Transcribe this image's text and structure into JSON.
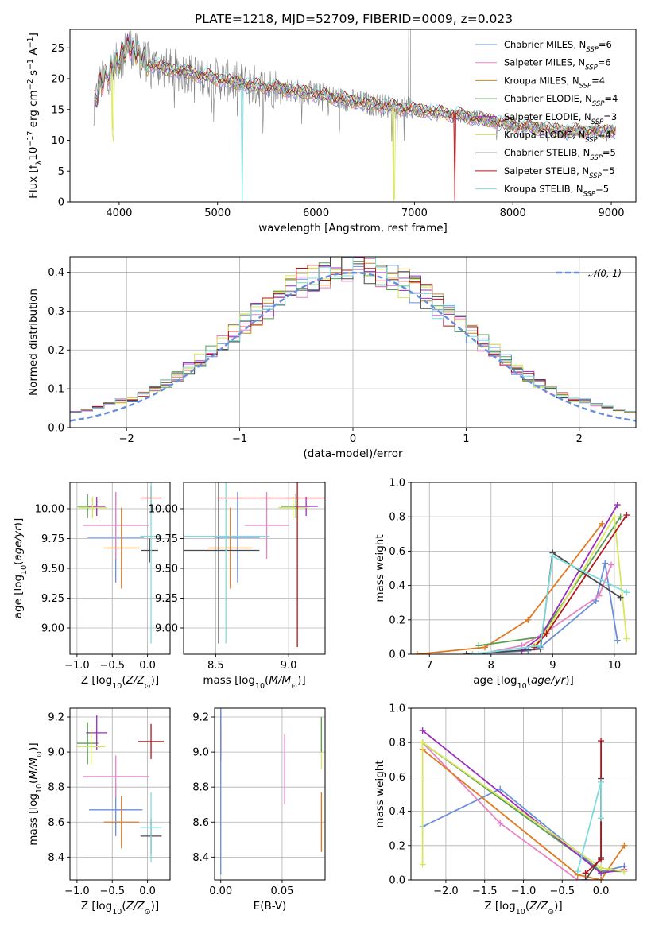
{
  "title": "PLATE=1218, MJD=52709, FIBERID=0009, z=0.023",
  "colors": {
    "chab_miles": "#6a8fd8",
    "salp_miles": "#e883c5",
    "kroupa_miles": "#c8882a",
    "chab_elodie": "#5a9e52",
    "salp_elodie": "#9b2dbd",
    "kroupa_elodie": "#d8e65a",
    "chab_stelib": "#4a4a4a",
    "salp_stelib": "#b3141b",
    "kroupa_stelib": "#7fdcdc",
    "data": "#808080",
    "age_mid": "#e07a22",
    "gauss": "#6a8fd8"
  },
  "chart_data": [
    {
      "id": "spectrum",
      "type": "line",
      "title": "PLATE=1218, MJD=52709, FIBERID=0009, z=0.023",
      "xlabel": "wavelength [Angstrom, rest frame]",
      "ylabel": "Flux [f_λ10^-17 erg cm^-2 s^-1 A^-1]",
      "xlim": [
        3500,
        9250
      ],
      "ylim": [
        0,
        28
      ],
      "xticks": [
        4000,
        5000,
        6000,
        7000,
        8000,
        9000
      ],
      "yticks": [
        0,
        5,
        10,
        15,
        20,
        25
      ],
      "grid": false,
      "legend_position": "top-right",
      "legend": [
        {
          "label": "Chabrier MILES, N",
          "sub": "SSP",
          "eq": "=6",
          "color_key": "chab_miles"
        },
        {
          "label": "Salpeter MILES, N",
          "sub": "SSP",
          "eq": "=6",
          "color_key": "salp_miles"
        },
        {
          "label": "Kroupa MILES, N",
          "sub": "SSP",
          "eq": "=4",
          "color_key": "kroupa_miles"
        },
        {
          "label": "Chabrier ELODIE, N",
          "sub": "SSP",
          "eq": "=4",
          "color_key": "chab_elodie"
        },
        {
          "label": "Salpeter ELODIE, N",
          "sub": "SSP",
          "eq": "=3",
          "color_key": "salp_elodie"
        },
        {
          "label": "Kroupa ELODIE, N",
          "sub": "SSP",
          "eq": "=4",
          "color_key": "kroupa_elodie"
        },
        {
          "label": "Chabrier STELIB, N",
          "sub": "SSP",
          "eq": "=5",
          "color_key": "chab_stelib"
        },
        {
          "label": "Salpeter STELIB, N",
          "sub": "SSP",
          "eq": "=5",
          "color_key": "salp_stelib"
        },
        {
          "label": "Kroupa STELIB, N",
          "sub": "SSP",
          "eq": "=5",
          "color_key": "kroupa_stelib"
        }
      ],
      "continuum": {
        "x": [
          3750,
          3800,
          3900,
          4000,
          4100,
          4200,
          4300,
          4400,
          4500,
          4700,
          5000,
          5300,
          5600,
          6000,
          6500,
          7000,
          7500,
          8000,
          8500,
          9000
        ],
        "y": [
          16,
          19,
          21,
          23,
          25.5,
          23.5,
          22.5,
          22,
          21.5,
          21,
          20,
          19,
          18.5,
          17.5,
          16,
          15,
          14,
          12.5,
          11.5,
          11.5
        ]
      },
      "absorption_features": [
        {
          "x": 3934,
          "depth": 10,
          "color_key": "kroupa_elodie"
        },
        {
          "x": 5250,
          "depth": 21,
          "color_key": "kroupa_stelib"
        },
        {
          "x": 6790,
          "depth": 15,
          "color_key": "kroupa_elodie"
        },
        {
          "x": 7410,
          "depth": 14,
          "color_key": "salp_stelib"
        }
      ],
      "data_spike": {
        "x": 6950,
        "y": 28
      }
    },
    {
      "id": "residuals",
      "type": "bar",
      "xlabel": "(data-model)/error",
      "ylabel": "Normed distribution",
      "xlim": [
        -2.5,
        2.5
      ],
      "ylim": [
        0,
        0.44
      ],
      "xticks": [
        -2,
        -1,
        0,
        1,
        2
      ],
      "yticks": [
        0.0,
        0.1,
        0.2,
        0.3,
        0.4
      ],
      "grid": true,
      "bin_width": 0.1,
      "legend_position": "top-right",
      "legend": [
        {
          "label": "N(0,1)",
          "color_key": "gauss",
          "style": "dashed"
        }
      ],
      "n_series": 9
    },
    {
      "id": "age-vs-Z",
      "type": "scatter",
      "xlabel": "Z [log10(Z/Z_sun)]",
      "ylabel": "age [log10(age/yr)]",
      "xlim": [
        -1.1,
        0.32
      ],
      "ylim": [
        8.78,
        10.22
      ],
      "xticks": [
        -1.0,
        -0.5,
        0.0
      ],
      "yticks": [
        9.0,
        9.25,
        9.5,
        9.75,
        10.0
      ],
      "grid": true,
      "points": [
        {
          "x": -0.45,
          "y": 9.76,
          "xerr": 0.4,
          "yerr": 0.38,
          "color_key": "chab_miles"
        },
        {
          "x": -0.45,
          "y": 9.86,
          "xerr": 0.47,
          "yerr": 0.28,
          "color_key": "salp_miles"
        },
        {
          "x": -0.37,
          "y": 9.67,
          "xerr": 0.25,
          "yerr": 0.34,
          "color_key": "age_mid"
        },
        {
          "x": -0.85,
          "y": 10.02,
          "xerr": 0.15,
          "yerr": 0.1,
          "color_key": "chab_elodie"
        },
        {
          "x": -0.72,
          "y": 10.02,
          "xerr": 0.12,
          "yerr": 0.08,
          "color_key": "salp_elodie"
        },
        {
          "x": -0.78,
          "y": 10.01,
          "xerr": 0.2,
          "yerr": 0.09,
          "color_key": "kroupa_elodie"
        },
        {
          "x": 0.03,
          "y": 9.65,
          "xerr": 0.12,
          "yerr": 0.1,
          "color_key": "chab_stelib"
        },
        {
          "x": 0.05,
          "y": 10.09,
          "xerr": 0.15,
          "yerr": 0.1,
          "color_key": "salp_stelib"
        },
        {
          "x": 0.05,
          "y": 9.77,
          "xerr": 0.15,
          "yerr": 0.9,
          "color_key": "kroupa_stelib"
        }
      ]
    },
    {
      "id": "age-vs-mass",
      "type": "scatter",
      "xlabel": "mass [log10(M/M_sun)]",
      "ylabel": "",
      "xlim": [
        8.28,
        9.25
      ],
      "ylim": [
        8.78,
        10.22
      ],
      "xticks": [
        8.5,
        9.0
      ],
      "yticks": [
        9.0,
        9.25,
        9.5,
        9.75,
        10.0
      ],
      "grid": true,
      "points": [
        {
          "x": 8.65,
          "y": 9.76,
          "xerr": 0.15,
          "yerr": 0.38,
          "color_key": "chab_miles"
        },
        {
          "x": 8.85,
          "y": 9.86,
          "xerr": 0.15,
          "yerr": 0.28,
          "color_key": "salp_miles"
        },
        {
          "x": 8.6,
          "y": 9.67,
          "xerr": 0.15,
          "yerr": 0.34,
          "color_key": "age_mid"
        },
        {
          "x": 9.05,
          "y": 10.02,
          "xerr": 0.1,
          "yerr": 0.1,
          "color_key": "chab_elodie"
        },
        {
          "x": 9.12,
          "y": 10.02,
          "xerr": 0.08,
          "yerr": 0.08,
          "color_key": "salp_elodie"
        },
        {
          "x": 9.03,
          "y": 10.01,
          "xerr": 0.1,
          "yerr": 0.09,
          "color_key": "kroupa_elodie"
        },
        {
          "x": 8.52,
          "y": 9.65,
          "xerr": 0.28,
          "yerr": 0.78,
          "color_key": "chab_stelib"
        },
        {
          "x": 9.06,
          "y": 10.09,
          "xerr": 0.55,
          "yerr": 1.25,
          "color_key": "salp_stelib"
        },
        {
          "x": 8.57,
          "y": 9.77,
          "xerr": 0.3,
          "yerr": 0.9,
          "color_key": "kroupa_stelib"
        }
      ]
    },
    {
      "id": "mass-weight-vs-age",
      "type": "line",
      "xlabel": "age [log10(age/yr)]",
      "ylabel": "mass weight",
      "xlim": [
        6.7,
        10.35
      ],
      "ylim": [
        0,
        1.0
      ],
      "xticks": [
        7,
        8,
        9,
        10
      ],
      "yticks": [
        0.0,
        0.2,
        0.4,
        0.6,
        0.8,
        1.0
      ],
      "grid": true,
      "series": [
        {
          "color_key": "chab_miles",
          "x": [
            7.6,
            8.6,
            8.8,
            9.7,
            9.85,
            10.05
          ],
          "y": [
            0.0,
            0.02,
            0.04,
            0.31,
            0.53,
            0.08
          ]
        },
        {
          "color_key": "salp_miles",
          "x": [
            7.8,
            8.5,
            8.9,
            9.75,
            9.95
          ],
          "y": [
            0.0,
            0.05,
            0.13,
            0.34,
            0.52
          ]
        },
        {
          "color_key": "age_mid",
          "x": [
            6.8,
            7.9,
            8.6,
            9.8
          ],
          "y": [
            0.0,
            0.04,
            0.2,
            0.76
          ]
        },
        {
          "color_key": "chab_elodie",
          "x": [
            7.8,
            8.8,
            10.1
          ],
          "y": [
            0.05,
            0.1,
            0.8
          ]
        },
        {
          "color_key": "salp_elodie",
          "x": [
            8.5,
            8.8,
            10.05
          ],
          "y": [
            0.02,
            0.1,
            0.87
          ]
        },
        {
          "color_key": "kroupa_elodie",
          "x": [
            8.7,
            8.9,
            10.0,
            10.2
          ],
          "y": [
            0.05,
            0.13,
            0.8,
            0.09
          ]
        },
        {
          "color_key": "chab_stelib",
          "x": [
            7.6,
            8.8,
            9.0,
            10.1
          ],
          "y": [
            0.0,
            0.03,
            0.59,
            0.33
          ]
        },
        {
          "color_key": "salp_stelib",
          "x": [
            8.7,
            8.9,
            10.2
          ],
          "y": [
            0.04,
            0.12,
            0.81
          ]
        },
        {
          "color_key": "kroupa_stelib",
          "x": [
            7.7,
            8.8,
            9.0,
            10.2
          ],
          "y": [
            0.0,
            0.05,
            0.57,
            0.36
          ]
        }
      ]
    },
    {
      "id": "mass-vs-Z",
      "type": "scatter",
      "xlabel": "Z [log10(Z/Z_sun)]",
      "ylabel": "mass [log10(M/M_sun)]",
      "xlim": [
        -1.1,
        0.32
      ],
      "ylim": [
        8.27,
        9.25
      ],
      "xticks": [
        -1.0,
        -0.5,
        0.0
      ],
      "yticks": [
        8.4,
        8.6,
        8.8,
        9.0,
        9.2
      ],
      "grid": true,
      "points": [
        {
          "x": -0.45,
          "y": 8.67,
          "xerr": 0.38,
          "yerr": 0.15,
          "color_key": "chab_miles"
        },
        {
          "x": -0.45,
          "y": 8.86,
          "xerr": 0.47,
          "yerr": 0.12,
          "color_key": "salp_miles"
        },
        {
          "x": -0.37,
          "y": 8.6,
          "xerr": 0.25,
          "yerr": 0.15,
          "color_key": "age_mid"
        },
        {
          "x": -0.85,
          "y": 9.05,
          "xerr": 0.15,
          "yerr": 0.12,
          "color_key": "chab_elodie"
        },
        {
          "x": -0.72,
          "y": 9.11,
          "xerr": 0.15,
          "yerr": 0.1,
          "color_key": "salp_elodie"
        },
        {
          "x": -0.8,
          "y": 9.03,
          "xerr": 0.2,
          "yerr": 0.1,
          "color_key": "kroupa_elodie"
        },
        {
          "x": 0.05,
          "y": 8.52,
          "xerr": 0.15,
          "yerr": 0.1,
          "color_key": "chab_stelib"
        },
        {
          "x": 0.05,
          "y": 9.06,
          "xerr": 0.18,
          "yerr": 0.1,
          "color_key": "salp_stelib"
        },
        {
          "x": 0.05,
          "y": 8.57,
          "xerr": 0.15,
          "yerr": 0.2,
          "color_key": "kroupa_stelib"
        }
      ]
    },
    {
      "id": "mass-vs-EBV",
      "type": "scatter",
      "xlabel": "E(B-V)",
      "ylabel": "",
      "xlim": [
        -0.005,
        0.085
      ],
      "ylim": [
        8.27,
        9.25
      ],
      "xticks": [
        0.0,
        0.05
      ],
      "yticks": [
        8.4,
        8.6,
        8.8,
        9.0,
        9.2
      ],
      "grid": true,
      "points": [
        {
          "x": 0.0,
          "y": 9.12,
          "yerr": 0.12,
          "color_key": "salp_elodie"
        },
        {
          "x": 0.0,
          "y": 9.05,
          "yerr": 0.1,
          "color_key": "salp_stelib"
        },
        {
          "x": 0.0,
          "y": 8.85,
          "yerr": 0.55,
          "color_key": "chab_miles"
        },
        {
          "x": 0.052,
          "y": 8.9,
          "yerr": 0.2,
          "color_key": "salp_miles"
        },
        {
          "x": 0.082,
          "y": 8.6,
          "yerr": 0.17,
          "color_key": "age_mid"
        },
        {
          "x": 0.082,
          "y": 9.05,
          "yerr": 0.15,
          "color_key": "kroupa_elodie"
        },
        {
          "x": 0.082,
          "y": 9.1,
          "yerr": 0.1,
          "color_key": "chab_elodie"
        }
      ]
    },
    {
      "id": "mass-weight-vs-Z",
      "type": "line",
      "xlabel": "Z [log10(Z/Z_sun)]",
      "ylabel": "mass weight",
      "xlim": [
        -2.45,
        0.45
      ],
      "ylim": [
        0,
        1.0
      ],
      "xticks": [
        -2.0,
        -1.5,
        -1.0,
        -0.5,
        0.0
      ],
      "yticks": [
        0.0,
        0.2,
        0.4,
        0.6,
        0.8,
        1.0
      ],
      "grid": true,
      "series": [
        {
          "color_key": "chab_miles",
          "x": [
            -2.3,
            -1.3,
            0.0,
            0.3
          ],
          "y": [
            0.31,
            0.53,
            0.05,
            0.08
          ]
        },
        {
          "color_key": "salp_miles",
          "x": [
            -2.3,
            -1.3,
            -0.3,
            0.0
          ],
          "y": [
            0.8,
            0.33,
            0.0,
            0.0
          ]
        },
        {
          "color_key": "age_mid",
          "x": [
            -2.3,
            -0.3,
            0.0,
            0.3
          ],
          "y": [
            0.76,
            0.03,
            0.0,
            0.2
          ]
        },
        {
          "color_key": "chab_elodie",
          "x": [
            -2.3,
            0.0,
            0.3
          ],
          "y": [
            0.8,
            0.05,
            0.05
          ]
        },
        {
          "color_key": "salp_elodie",
          "x": [
            -2.3,
            0.0,
            0.3
          ],
          "y": [
            0.87,
            0.04,
            0.06
          ]
        },
        {
          "color_key": "kroupa_elodie",
          "x": [
            -2.3,
            -2.3,
            0.0,
            0.3
          ],
          "y": [
            0.09,
            0.8,
            0.07,
            0.05
          ]
        },
        {
          "color_key": "chab_stelib",
          "x": [
            -0.2,
            0.0,
            0.0
          ],
          "y": [
            0.0,
            0.13,
            0.59
          ]
        },
        {
          "color_key": "salp_stelib",
          "x": [
            -0.2,
            0.0,
            0.0
          ],
          "y": [
            0.04,
            0.12,
            0.81
          ]
        },
        {
          "color_key": "kroupa_stelib",
          "x": [
            -0.3,
            0.0,
            0.0
          ],
          "y": [
            0.05,
            0.57,
            0.36
          ]
        }
      ]
    }
  ]
}
